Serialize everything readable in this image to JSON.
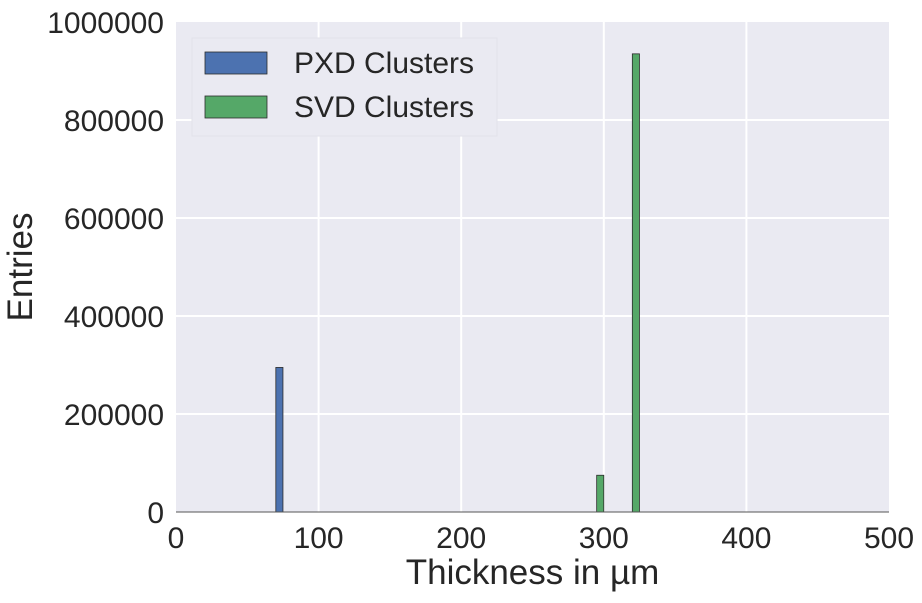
{
  "chart_data": {
    "type": "bar",
    "xlabel": "Thickness in µm",
    "ylabel": "Entries",
    "xlim": [
      0,
      500
    ],
    "ylim": [
      0,
      1000000
    ],
    "x_ticks": [
      0,
      100,
      200,
      300,
      400,
      500
    ],
    "y_ticks": [
      0,
      200000,
      400000,
      600000,
      800000,
      1000000
    ],
    "x_tick_labels": [
      "0",
      "100",
      "200",
      "300",
      "400",
      "500"
    ],
    "y_tick_labels": [
      "0",
      "200000",
      "400000",
      "600000",
      "800000",
      "1000000"
    ],
    "bin_width": 5,
    "series": [
      {
        "name": "PXD Clusters",
        "color": "#4C72B0",
        "bins": [
          {
            "x": 72.5,
            "value": 295000
          }
        ]
      },
      {
        "name": "SVD Clusters",
        "color": "#55A868",
        "bins": [
          {
            "x": 297.5,
            "value": 75000
          },
          {
            "x": 322.5,
            "value": 935000
          }
        ]
      }
    ],
    "grid": true,
    "background": "#EAEAF2",
    "legend_position": "top-left"
  }
}
